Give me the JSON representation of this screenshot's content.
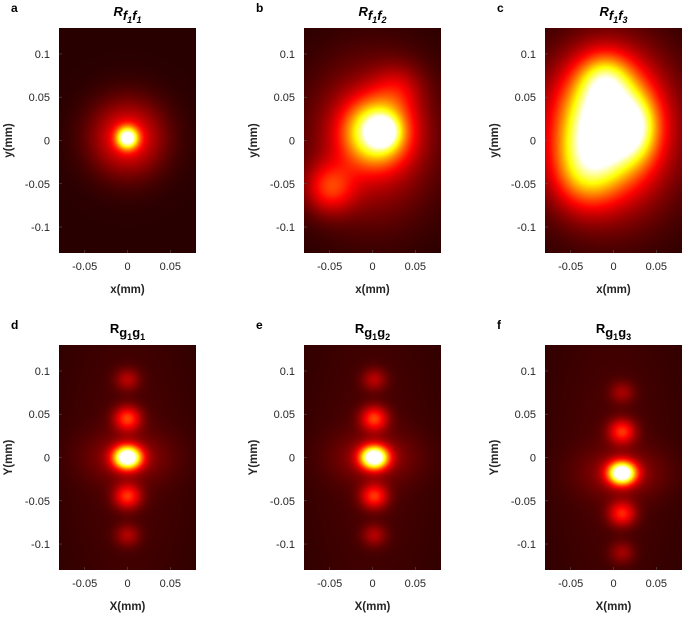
{
  "chart_data": [
    {
      "type": "heatmap",
      "panel_label": "a",
      "title": {
        "base": "R",
        "sub": [
          [
            "f",
            "1"
          ],
          [
            "f",
            "1"
          ]
        ],
        "italic": true
      },
      "xlabel": "x(mm)",
      "ylabel": "y(mm)",
      "xlim": [
        -0.08,
        0.08
      ],
      "ylim": [
        -0.13,
        0.13
      ],
      "xticks": [
        -0.05,
        0,
        0.05
      ],
      "xtick_labels": [
        "-0.05",
        "0",
        "0.05"
      ],
      "yticks": [
        -0.1,
        -0.05,
        0,
        0.05,
        0.1
      ],
      "ytick_labels": [
        "-0.1",
        "-0.05",
        "0",
        "0.05",
        "0.1"
      ],
      "colormap": "hot",
      "blobs": [
        {
          "x": 0.0,
          "y": 0.003,
          "sx": 0.03,
          "sy": 0.03,
          "a": 0.33
        },
        {
          "x": 0.0,
          "y": 0.003,
          "sx": 0.0085,
          "sy": 0.0085,
          "a": 0.8
        }
      ]
    },
    {
      "type": "heatmap",
      "panel_label": "b",
      "title": {
        "base": "R",
        "sub": [
          [
            "f",
            "1"
          ],
          [
            "f",
            "2"
          ]
        ],
        "italic": true
      },
      "xlabel": "x(mm)",
      "ylabel": "y(mm)",
      "xlim": [
        -0.08,
        0.08
      ],
      "ylim": [
        -0.13,
        0.13
      ],
      "xticks": [
        -0.05,
        0,
        0.05
      ],
      "xtick_labels": [
        "-0.05",
        "0",
        "0.05"
      ],
      "yticks": [
        -0.1,
        -0.05,
        0,
        0.05,
        0.1
      ],
      "ytick_labels": [
        "-0.1",
        "-0.05",
        "0",
        "0.05",
        "0.1"
      ],
      "colormap": "hot",
      "blobs": [
        {
          "x": 0.0,
          "y": 0.0,
          "sx": 0.05,
          "sy": 0.06,
          "a": 0.28
        },
        {
          "x": 0.005,
          "y": 0.01,
          "sx": 0.025,
          "sy": 0.025,
          "a": 0.7
        },
        {
          "x": 0.012,
          "y": 0.01,
          "sx": 0.011,
          "sy": 0.011,
          "a": 0.5
        },
        {
          "x": -0.05,
          "y": -0.055,
          "sx": 0.02,
          "sy": 0.02,
          "a": 0.3
        },
        {
          "x": 0.03,
          "y": 0.06,
          "sx": 0.02,
          "sy": 0.02,
          "a": 0.14
        }
      ]
    },
    {
      "type": "heatmap",
      "panel_label": "c",
      "title": {
        "base": "R",
        "sub": [
          [
            "f",
            "1"
          ],
          [
            "f",
            "3"
          ]
        ],
        "italic": true
      },
      "xlabel": "x(mm)",
      "ylabel": "y(mm)",
      "xlim": [
        -0.08,
        0.08
      ],
      "ylim": [
        -0.13,
        0.13
      ],
      "xticks": [
        -0.05,
        0,
        0.05
      ],
      "xtick_labels": [
        "-0.05",
        "0",
        "0.05"
      ],
      "yticks": [
        -0.1,
        -0.05,
        0,
        0.05,
        0.1
      ],
      "ytick_labels": [
        "-0.1",
        "-0.05",
        "0",
        "0.05",
        "0.1"
      ],
      "colormap": "hot",
      "blobs": [
        {
          "x": -0.005,
          "y": 0.01,
          "sx": 0.055,
          "sy": 0.065,
          "a": 0.45
        },
        {
          "x": -0.01,
          "y": 0.02,
          "sx": 0.032,
          "sy": 0.042,
          "a": 0.75
        },
        {
          "x": 0.025,
          "y": 0.015,
          "sx": 0.018,
          "sy": 0.025,
          "a": 0.35
        },
        {
          "x": -0.035,
          "y": -0.035,
          "sx": 0.025,
          "sy": 0.03,
          "a": 0.3
        },
        {
          "x": -0.01,
          "y": 0.07,
          "sx": 0.02,
          "sy": 0.02,
          "a": 0.3
        }
      ]
    },
    {
      "type": "heatmap",
      "panel_label": "d",
      "title": {
        "base": "R",
        "sub": [
          [
            "g",
            "1"
          ],
          [
            "g",
            "1"
          ]
        ],
        "italic": false
      },
      "xlabel": "X(mm)",
      "ylabel": "Y(mm)",
      "xlim": [
        -0.08,
        0.08
      ],
      "ylim": [
        -0.13,
        0.13
      ],
      "xticks": [
        -0.05,
        0,
        0.05
      ],
      "xtick_labels": [
        "-0.05",
        "0",
        "0.05"
      ],
      "yticks": [
        -0.1,
        -0.05,
        0,
        0.05,
        0.1
      ],
      "ytick_labels": [
        "-0.1",
        "-0.05",
        "0",
        "0.05",
        "0.1"
      ],
      "colormap": "hot",
      "blobs": [
        {
          "x": 0.0,
          "y": 0.0,
          "sx": 0.011,
          "sy": 0.009,
          "a": 1.05
        },
        {
          "x": 0.0,
          "y": 0.0,
          "sx": 0.035,
          "sy": 0.02,
          "a": 0.12
        },
        {
          "x": 0.0,
          "y": 0.045,
          "sx": 0.011,
          "sy": 0.01,
          "a": 0.36
        },
        {
          "x": 0.0,
          "y": -0.045,
          "sx": 0.011,
          "sy": 0.01,
          "a": 0.34
        },
        {
          "x": 0.0,
          "y": 0.09,
          "sx": 0.01,
          "sy": 0.009,
          "a": 0.17
        },
        {
          "x": 0.0,
          "y": -0.09,
          "sx": 0.01,
          "sy": 0.009,
          "a": 0.16
        },
        {
          "x": 0.0,
          "y": 0.0,
          "sx": 0.06,
          "sy": 0.14,
          "a": 0.05
        }
      ]
    },
    {
      "type": "heatmap",
      "panel_label": "e",
      "title": {
        "base": "R",
        "sub": [
          [
            "g",
            "1"
          ],
          [
            "g",
            "2"
          ]
        ],
        "italic": false
      },
      "xlabel": "X(mm)",
      "ylabel": "Y(mm)",
      "xlim": [
        -0.08,
        0.08
      ],
      "ylim": [
        -0.13,
        0.13
      ],
      "xticks": [
        -0.05,
        0,
        0.05
      ],
      "xtick_labels": [
        "-0.05",
        "0",
        "0.05"
      ],
      "yticks": [
        -0.1,
        -0.05,
        0,
        0.05,
        0.1
      ],
      "ytick_labels": [
        "-0.1",
        "-0.05",
        "0",
        "0.05",
        "0.1"
      ],
      "colormap": "hot",
      "blobs": [
        {
          "x": 0.002,
          "y": 0.0,
          "sx": 0.011,
          "sy": 0.009,
          "a": 1.05
        },
        {
          "x": 0.002,
          "y": 0.0,
          "sx": 0.035,
          "sy": 0.02,
          "a": 0.12
        },
        {
          "x": 0.002,
          "y": 0.045,
          "sx": 0.011,
          "sy": 0.01,
          "a": 0.36
        },
        {
          "x": 0.002,
          "y": -0.045,
          "sx": 0.011,
          "sy": 0.01,
          "a": 0.34
        },
        {
          "x": 0.002,
          "y": 0.09,
          "sx": 0.01,
          "sy": 0.009,
          "a": 0.17
        },
        {
          "x": 0.002,
          "y": -0.09,
          "sx": 0.01,
          "sy": 0.009,
          "a": 0.16
        },
        {
          "x": 0.0,
          "y": 0.0,
          "sx": 0.06,
          "sy": 0.14,
          "a": 0.05
        }
      ]
    },
    {
      "type": "heatmap",
      "panel_label": "f",
      "title": {
        "base": "R",
        "sub": [
          [
            "g",
            "1"
          ],
          [
            "g",
            "3"
          ]
        ],
        "italic": false
      },
      "xlabel": "X(mm)",
      "ylabel": "Y(mm)",
      "xlim": [
        -0.08,
        0.08
      ],
      "ylim": [
        -0.13,
        0.13
      ],
      "xticks": [
        -0.05,
        0,
        0.05
      ],
      "xtick_labels": [
        "-0.05",
        "0",
        "0.05"
      ],
      "yticks": [
        -0.1,
        -0.05,
        0,
        0.05,
        0.1
      ],
      "ytick_labels": [
        "-0.1",
        "-0.05",
        "0",
        "0.05",
        "0.1"
      ],
      "colormap": "hot",
      "blobs": [
        {
          "x": 0.01,
          "y": -0.018,
          "sx": 0.011,
          "sy": 0.009,
          "a": 1.05
        },
        {
          "x": 0.01,
          "y": -0.018,
          "sx": 0.035,
          "sy": 0.02,
          "a": 0.12
        },
        {
          "x": 0.01,
          "y": 0.03,
          "sx": 0.011,
          "sy": 0.01,
          "a": 0.34
        },
        {
          "x": 0.01,
          "y": -0.065,
          "sx": 0.011,
          "sy": 0.01,
          "a": 0.32
        },
        {
          "x": 0.01,
          "y": 0.075,
          "sx": 0.01,
          "sy": 0.009,
          "a": 0.14
        },
        {
          "x": 0.01,
          "y": -0.11,
          "sx": 0.01,
          "sy": 0.009,
          "a": 0.14
        },
        {
          "x": 0.0,
          "y": 0.0,
          "sx": 0.06,
          "sy": 0.14,
          "a": 0.05
        }
      ]
    }
  ]
}
